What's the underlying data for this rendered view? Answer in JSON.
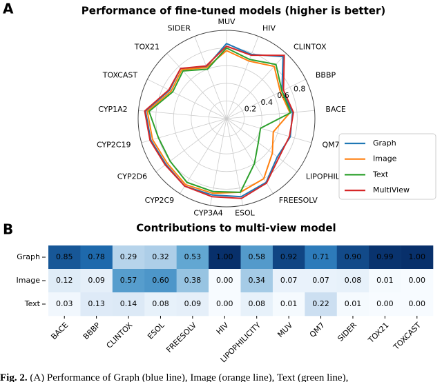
{
  "chart_data": [
    {
      "type": "radar",
      "panel": "A",
      "title": "Performance of fine-tuned models (higher is better)",
      "categories": [
        "MUV",
        "HIV",
        "CLINTOX",
        "BBBP",
        "BACE",
        "QM7",
        "LIPOPHILICITY",
        "FREESOLV",
        "ESOL",
        "CYP3A4",
        "CYP2C9",
        "CYP2D6",
        "CYP2C19",
        "CYP1A2",
        "TOXCAST",
        "TOX21",
        "SIDER"
      ],
      "rlim": [
        0,
        1
      ],
      "rticks": [
        0.2,
        0.4,
        0.6,
        0.8
      ],
      "grid": true,
      "legend": "right",
      "series": [
        {
          "name": "Graph",
          "color": "#1f77b4",
          "values": [
            0.85,
            0.78,
            0.95,
            0.7,
            0.75,
            0.75,
            0.72,
            0.85,
            0.9,
            0.88,
            0.9,
            0.86,
            0.89,
            0.92,
            0.72,
            0.77,
            0.63
          ]
        },
        {
          "name": "Image",
          "color": "#ff7f0e",
          "values": [
            0.77,
            0.7,
            0.8,
            0.68,
            0.72,
            0.55,
            0.65,
            0.8,
            0.85,
            0.86,
            0.88,
            0.84,
            0.87,
            0.9,
            0.7,
            0.75,
            0.62
          ]
        },
        {
          "name": "Text",
          "color": "#2ca02c",
          "values": [
            0.8,
            0.72,
            0.83,
            0.7,
            0.73,
            0.4,
            0.45,
            0.6,
            0.85,
            0.84,
            0.85,
            0.8,
            0.8,
            0.88,
            0.68,
            0.73,
            0.6
          ]
        },
        {
          "name": "MultiView",
          "color": "#d62728",
          "values": [
            0.82,
            0.77,
            0.97,
            0.72,
            0.76,
            0.74,
            0.74,
            0.86,
            0.92,
            0.9,
            0.9,
            0.87,
            0.9,
            0.93,
            0.73,
            0.77,
            0.64
          ]
        }
      ]
    },
    {
      "type": "heatmap",
      "panel": "B",
      "title": "Contributions to multi-view model",
      "rows": [
        "Graph",
        "Image",
        "Text"
      ],
      "cols": [
        "BACE",
        "BBBP",
        "CLINTOX",
        "ESOL",
        "FREESOLV",
        "HIV",
        "LIPOPHILICITY",
        "MUV",
        "QM7",
        "SIDER",
        "TOX21",
        "TOXCAST"
      ],
      "vlim": [
        0,
        1
      ],
      "colormap": [
        "#f7fbff",
        "#c6dbef",
        "#6baed6",
        "#2171b5",
        "#08306b"
      ],
      "values": [
        [
          0.85,
          0.78,
          0.29,
          0.32,
          0.53,
          1.0,
          0.58,
          0.92,
          0.71,
          0.9,
          0.99,
          1.0
        ],
        [
          0.12,
          0.09,
          0.57,
          0.6,
          0.38,
          0.0,
          0.34,
          0.07,
          0.07,
          0.08,
          0.01,
          0.0
        ],
        [
          0.03,
          0.13,
          0.14,
          0.08,
          0.09,
          0.0,
          0.08,
          0.01,
          0.22,
          0.01,
          0.0,
          0.0
        ]
      ],
      "value_labels": [
        [
          "0.85",
          "0.78",
          "0.29",
          "0.32",
          "0.53",
          "1.00",
          "0.58",
          "0.92",
          "0.71",
          "0.90",
          "0.99",
          "1.00"
        ],
        [
          "0.12",
          "0.09",
          "0.57",
          "0.60",
          "0.38",
          "0.00",
          "0.34",
          "0.07",
          "0.07",
          "0.08",
          "0.01",
          "0.00"
        ],
        [
          "0.03",
          "0.13",
          "0.14",
          "0.08",
          "0.09",
          "0.00",
          "0.08",
          "0.01",
          "0.22",
          "0.01",
          "0.00",
          "0.00"
        ]
      ]
    }
  ],
  "caption_label": "Fig. 2.",
  "caption": "(A) Performance of Graph (blue line), Image (orange line), Text (green line),"
}
